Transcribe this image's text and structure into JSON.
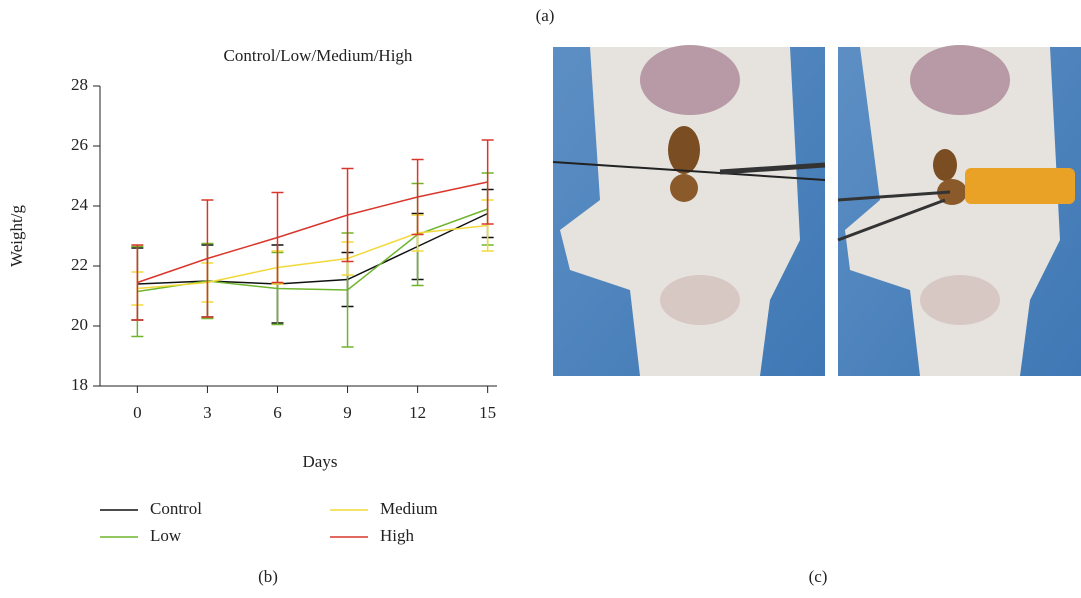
{
  "figure": {
    "panel_labels": [
      "(a)",
      "(b)",
      "(c)"
    ]
  },
  "chart_data": {
    "type": "line",
    "title": "Control/Low/Medium/High",
    "x_label": "Days",
    "y_label": "Weight/g",
    "x": [
      0,
      3,
      6,
      9,
      12,
      15
    ],
    "xlim": [
      -1.6,
      15.4
    ],
    "xticks": [
      0,
      3,
      6,
      9,
      12,
      15
    ],
    "ylim": [
      18,
      28
    ],
    "yticks": [
      18,
      20,
      22,
      24,
      26,
      28
    ],
    "grid": false,
    "legend": "bottom",
    "series": [
      {
        "name": "Control",
        "color": "#111111",
        "values": [
          21.4,
          21.5,
          21.4,
          21.55,
          22.65,
          23.75
        ],
        "errors": [
          1.2,
          1.2,
          1.3,
          0.9,
          1.1,
          0.8
        ]
      },
      {
        "name": "Low",
        "color": "#6fb52c",
        "values": [
          21.15,
          21.5,
          21.25,
          21.2,
          23.05,
          23.9
        ],
        "errors": [
          1.5,
          1.25,
          1.2,
          1.9,
          1.7,
          1.2
        ]
      },
      {
        "name": "Medium",
        "color": "#f2d93a",
        "values": [
          21.25,
          21.45,
          21.95,
          22.25,
          23.1,
          23.35
        ],
        "errors": [
          0.55,
          0.65,
          0.55,
          0.55,
          0.6,
          0.85
        ]
      },
      {
        "name": "High",
        "color": "#d9362b",
        "values": [
          21.45,
          22.25,
          22.95,
          23.7,
          24.3,
          24.8
        ],
        "errors": [
          1.25,
          1.95,
          1.5,
          1.55,
          1.25,
          1.4
        ]
      }
    ]
  }
}
